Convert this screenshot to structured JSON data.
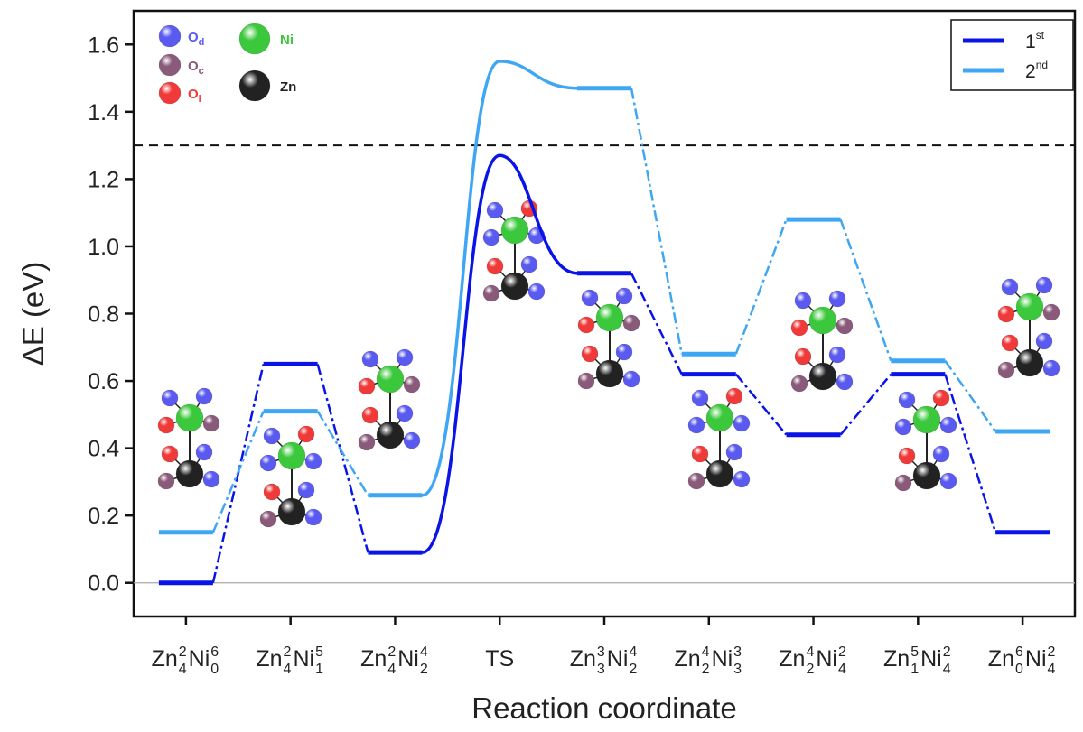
{
  "chart_data": {
    "type": "energy-profile",
    "y_label": "ΔE (eV)",
    "x_label": "Reaction coordinate",
    "categories": [
      {
        "elements": [
          {
            "symbol": "Zn",
            "sub": "4",
            "sup": "2"
          },
          {
            "symbol": "Ni",
            "sub": "0",
            "sup": "6"
          }
        ]
      },
      {
        "elements": [
          {
            "symbol": "Zn",
            "sub": "4",
            "sup": "2"
          },
          {
            "symbol": "Ni",
            "sub": "1",
            "sup": "5"
          }
        ]
      },
      {
        "elements": [
          {
            "symbol": "Zn",
            "sub": "4",
            "sup": "2"
          },
          {
            "symbol": "Ni",
            "sub": "2",
            "sup": "4"
          }
        ]
      },
      {
        "text": "TS"
      },
      {
        "elements": [
          {
            "symbol": "Zn",
            "sub": "3",
            "sup": "3"
          },
          {
            "symbol": "Ni",
            "sub": "2",
            "sup": "4"
          }
        ]
      },
      {
        "elements": [
          {
            "symbol": "Zn",
            "sub": "2",
            "sup": "4"
          },
          {
            "symbol": "Ni",
            "sub": "3",
            "sup": "3"
          }
        ]
      },
      {
        "elements": [
          {
            "symbol": "Zn",
            "sub": "2",
            "sup": "4"
          },
          {
            "symbol": "Ni",
            "sub": "4",
            "sup": "2"
          }
        ]
      },
      {
        "elements": [
          {
            "symbol": "Zn",
            "sub": "1",
            "sup": "5"
          },
          {
            "symbol": "Ni",
            "sub": "4",
            "sup": "2"
          }
        ]
      },
      {
        "elements": [
          {
            "symbol": "Zn",
            "sub": "0",
            "sup": "6"
          },
          {
            "symbol": "Ni",
            "sub": "4",
            "sup": "2"
          }
        ]
      }
    ],
    "series": [
      {
        "name": "1",
        "name_sup": "st",
        "color": "#0a14e6",
        "values": [
          0.0,
          0.65,
          0.09,
          1.27,
          0.92,
          0.62,
          0.44,
          0.62,
          0.15
        ]
      },
      {
        "name": "2",
        "name_sup": "nd",
        "color": "#3ea6f2",
        "values": [
          0.15,
          0.51,
          0.26,
          1.55,
          1.47,
          0.68,
          1.08,
          0.66,
          0.45
        ]
      }
    ],
    "ylim": [
      -0.1,
      1.7
    ],
    "yticks": [
      {
        "value": 0,
        "label": "0.0"
      },
      0.2,
      0.4,
      0.6,
      0.8,
      {
        "value": 1,
        "label": "1.0"
      },
      1.2,
      1.4,
      1.6
    ],
    "reference_line": 1.3,
    "legend_position": "upper right",
    "atom_legend": [
      {
        "symbol": "O",
        "sub": "d",
        "color": "#5a5af0"
      },
      {
        "symbol": "O",
        "sub": "c",
        "color": "#8a5a7a"
      },
      {
        "symbol": "O",
        "sub": "l",
        "color": "#f03a3a"
      },
      {
        "symbol": "Ni",
        "color": "#3cc83c"
      },
      {
        "symbol": "Zn",
        "color": "#222222"
      }
    ]
  }
}
